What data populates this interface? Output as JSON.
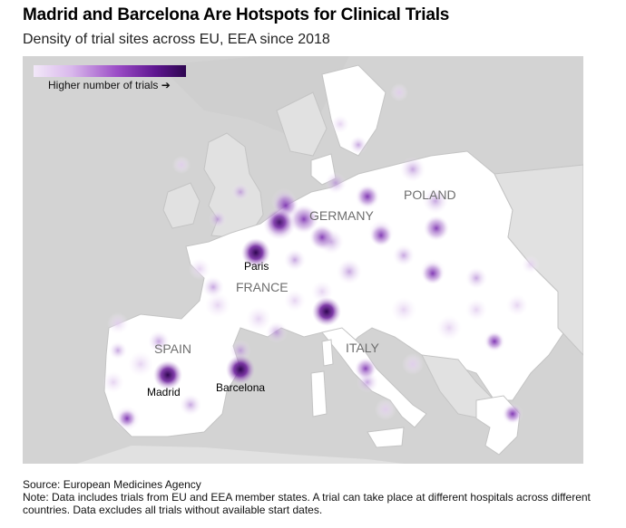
{
  "title": "Madrid and Barcelona Are Hotspots for Clinical Trials",
  "subtitle": "Density of trial sites across EU, EEA since 2018",
  "legend": {
    "label": "Higher number of trials ➔"
  },
  "colors": {
    "land": "#ffffff",
    "other_land": "#d3d3d3",
    "water": "#d3d3d3",
    "border": "#bdbdbd",
    "hot": "#3b0b5c",
    "mid": "#7a2aa6",
    "light": "#c9a6df"
  },
  "countries": {
    "germany": "GERMANY",
    "poland": "POLAND",
    "france": "FRANCE",
    "spain": "SPAIN",
    "italy": "ITALY"
  },
  "cities": {
    "paris": "Paris",
    "madrid": "Madrid",
    "barcelona": "Barcelona"
  },
  "source": "Source: European Medicines Agency",
  "note": "Note: Data includes trials from EU and EEA member states. A trial can take place at different hospitals across different countries. Data excludes all trials without available start dates."
}
